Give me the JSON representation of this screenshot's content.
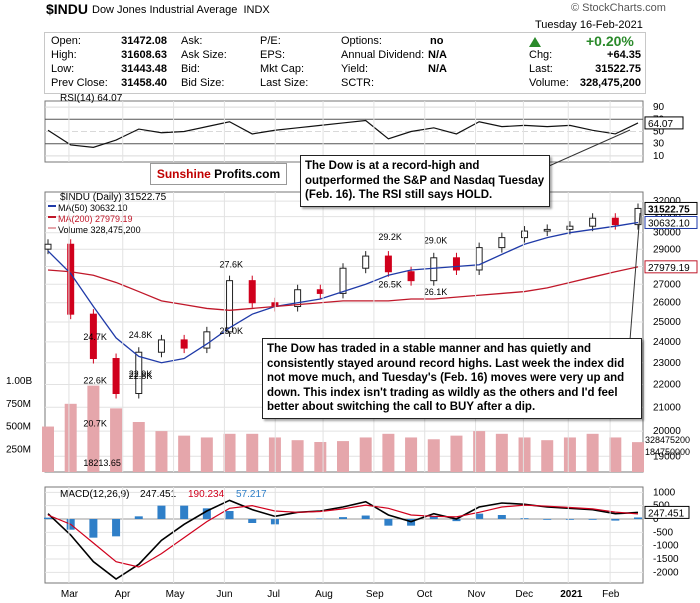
{
  "watermark": "© StockCharts.com",
  "symbol": "$INDU",
  "name": "Dow Jones Industrial Average",
  "exchange": "INDX",
  "date": "Tuesday  16-Feb-2021",
  "quote": {
    "open_label": "Open:",
    "open": "31472.08",
    "high_label": "High:",
    "high": "31608.63",
    "low_label": "Low:",
    "low": "31443.48",
    "prevclose_label": "Prev Close:",
    "prevclose": "31458.40",
    "ask_label": "Ask:",
    "asksize_label": "Ask Size:",
    "bid_label": "Bid:",
    "bidsize_label": "Bid Size:",
    "pe_label": "P/E:",
    "eps_label": "EPS:",
    "mktcap_label": "Mkt Cap:",
    "lastsize_label": "Last Size:",
    "options_label": "Options:",
    "options": "no",
    "dividend_label": "Annual Dividend:",
    "dividend": "N/A",
    "yield_label": "Yield:",
    "yield": "N/A",
    "sctr_label": "SCTR:",
    "pct_change": "+0.20%",
    "chg_label": "Chg:",
    "chg": "+64.35",
    "last_label": "Last:",
    "last": "31522.75",
    "volume_label": "Volume:",
    "volume": "328,475,200"
  },
  "colors": {
    "up": "#2a8a2a",
    "candle_up": "#222222",
    "candle_down": "#d0001c",
    "ma50": "#1f3aa8",
    "ma200": "#c0182a",
    "volume": "#e5a6ab",
    "rsi": "#111111",
    "macd": "#000000",
    "signal": "#d0001c",
    "histogram": "#2f7fc8"
  },
  "logo": {
    "part1": "Sunshine",
    "part2": "Profits.com"
  },
  "annotations": {
    "note1": "The Dow is at a record-high and outperformed the S&P and Nasdaq Tuesday (Feb. 16). The RSI still says HOLD.",
    "note2": "The Dow has traded in a stable manner and has quietly and consistently stayed around record highs. Last week the index did not move much, and Tuesday's (Feb. 16) moves were very up and down. This index isn't trading as wildly as the others and I'd feel better about switching the call to BUY after a dip."
  },
  "chart_data": [
    {
      "type": "line",
      "title": "RSI(14) 64.07",
      "y_ticks": [
        90,
        70,
        50,
        30,
        10
      ],
      "last_label": "64.07",
      "ylim": [
        0,
        100
      ],
      "x": [
        "Feb 14",
        "Feb 28",
        "Mar 14",
        "Mar 28",
        "Apr 11",
        "Apr 25",
        "May 09",
        "May 23",
        "Jun 06",
        "Jun 20",
        "Jul 04",
        "Jul 18",
        "Aug 01",
        "Aug 15",
        "Aug 29",
        "Sep 12",
        "Sep 26",
        "Oct 10",
        "Oct 24",
        "Nov 07",
        "Nov 21",
        "Dec 05",
        "Dec 19",
        "Jan 02",
        "Jan 16",
        "Jan 30",
        "Feb 13"
      ],
      "values": [
        52,
        28,
        24,
        36,
        54,
        48,
        50,
        58,
        66,
        46,
        52,
        56,
        60,
        64,
        68,
        38,
        50,
        56,
        46,
        66,
        58,
        60,
        58,
        60,
        52,
        46,
        64
      ]
    },
    {
      "type": "candlestick",
      "title": "$INDU (Daily) 31522.75",
      "legend": [
        {
          "name": "MA(50) 30632.10",
          "color": "#1f3aa8"
        },
        {
          "name": "MA(200) 27979.19",
          "color": "#c0182a"
        },
        {
          "name": "Volume 328,475,200",
          "color": "#e5a6ab"
        }
      ],
      "x_ticks": [
        "Mar",
        "Apr",
        "May",
        "Jun",
        "Jul",
        "Aug",
        "Sep",
        "Oct",
        "Nov",
        "Dec",
        "2021",
        "Feb"
      ],
      "y_ticks": [
        32000,
        31000,
        30000,
        29000,
        28000,
        27000,
        26000,
        25000,
        24000,
        23000,
        22000,
        21000,
        20000,
        19000
      ],
      "y_scale": "log",
      "ylim": [
        18400,
        32600
      ],
      "price_labels": [
        "31522.75",
        "30632.10",
        "27979.19"
      ],
      "volume_y_ticks": [
        "1.00B",
        "750M",
        "500M",
        "250M"
      ],
      "volume_right_labels": [
        "328475200",
        "184750000"
      ],
      "extrema_labels": [
        {
          "text": "24.7K",
          "x": "Mar 06",
          "y": 24700
        },
        {
          "text": "22.6K",
          "x": "Mar 14",
          "y": 22600
        },
        {
          "text": "20.7K",
          "x": "Mar 20",
          "y": 20700
        },
        {
          "text": "18213.65",
          "x": "Mar 23",
          "y": 18213.65
        },
        {
          "text": "22.9K",
          "x": "Apr 02",
          "y": 22900
        },
        {
          "text": "24.8K",
          "x": "Apr 17",
          "y": 24800
        },
        {
          "text": "22.8K",
          "x": "Apr 30",
          "y": 22800
        },
        {
          "text": "27.6K",
          "x": "Jun 08",
          "y": 27600
        },
        {
          "text": "25.0K",
          "x": "Jun 26",
          "y": 25000
        },
        {
          "text": "29.2K",
          "x": "Sep 02",
          "y": 29200
        },
        {
          "text": "26.5K",
          "x": "Sep 24",
          "y": 26500
        },
        {
          "text": "29.0K",
          "x": "Oct 12",
          "y": 29000
        },
        {
          "text": "26.1K",
          "x": "Oct 30",
          "y": 26100
        }
      ],
      "x": [
        "Feb 14",
        "Feb 28",
        "Mar 14",
        "Mar 28",
        "Apr 11",
        "Apr 25",
        "May 09",
        "May 23",
        "Jun 06",
        "Jun 20",
        "Jul 04",
        "Jul 18",
        "Aug 01",
        "Aug 15",
        "Aug 29",
        "Sep 12",
        "Sep 26",
        "Oct 10",
        "Oct 24",
        "Nov 07",
        "Nov 21",
        "Dec 05",
        "Dec 19",
        "Jan 02",
        "Jan 16",
        "Jan 30",
        "Feb 13"
      ],
      "close": [
        29300,
        25400,
        23200,
        21600,
        23500,
        24100,
        23700,
        24500,
        27200,
        26000,
        25800,
        26700,
        26500,
        27900,
        28600,
        27700,
        27200,
        28500,
        27800,
        29100,
        29700,
        30100,
        30200,
        30400,
        30900,
        30500,
        31522.75
      ],
      "ma50": [
        28900,
        27600,
        25800,
        24200,
        23300,
        23000,
        23200,
        23900,
        24700,
        25400,
        25800,
        26000,
        26200,
        26600,
        27000,
        27500,
        27800,
        27900,
        28000,
        28100,
        28700,
        29300,
        29700,
        30000,
        30200,
        30400,
        30632.1
      ],
      "ma200": [
        27800,
        27700,
        27500,
        27100,
        26600,
        26100,
        25900,
        25700,
        25600,
        25700,
        25800,
        25900,
        26000,
        26100,
        26100,
        26100,
        26200,
        26200,
        26300,
        26400,
        26500,
        26600,
        26800,
        27100,
        27400,
        27700,
        27979.19
      ],
      "volume_millions": [
        500,
        750,
        950,
        700,
        550,
        450,
        400,
        380,
        420,
        420,
        380,
        350,
        330,
        340,
        380,
        420,
        380,
        360,
        400,
        450,
        420,
        380,
        350,
        380,
        420,
        380,
        328.48
      ]
    },
    {
      "type": "line",
      "title": "MACD(12,26,9) 247.451, 190.234, 57.217",
      "legend": [
        {
          "name": "247.451",
          "color": "#000000"
        },
        {
          "name": "190.234",
          "color": "#d0001c"
        },
        {
          "name": "57.217",
          "color": "#2f7fc8"
        }
      ],
      "y_ticks": [
        1000,
        500,
        0,
        -500,
        -1000,
        -1500,
        -2000
      ],
      "ylim": [
        -2400,
        1200
      ],
      "last_label": "247.451",
      "x_ticks": [
        "Mar",
        "Apr",
        "May",
        "Jun",
        "Jul",
        "Aug",
        "Sep",
        "Oct",
        "Nov",
        "Dec",
        "2021",
        "Feb"
      ],
      "x": [
        "Feb 14",
        "Feb 28",
        "Mar 14",
        "Mar 28",
        "Apr 11",
        "Apr 25",
        "May 09",
        "May 23",
        "Jun 06",
        "Jun 20",
        "Jul 04",
        "Jul 18",
        "Aug 01",
        "Aug 15",
        "Aug 29",
        "Sep 12",
        "Sep 26",
        "Oct 10",
        "Oct 24",
        "Nov 07",
        "Nov 21",
        "Dec 05",
        "Dec 19",
        "Jan 02",
        "Jan 16",
        "Jan 30",
        "Feb 13"
      ],
      "macd": [
        200,
        -600,
        -1600,
        -2250,
        -1700,
        -800,
        -200,
        300,
        700,
        350,
        100,
        250,
        300,
        450,
        650,
        150,
        -100,
        200,
        0,
        450,
        600,
        550,
        450,
        400,
        350,
        200,
        247.451
      ],
      "signal": [
        150,
        -200,
        -900,
        -1600,
        -1800,
        -1300,
        -700,
        -100,
        400,
        500,
        300,
        250,
        280,
        380,
        520,
        400,
        150,
        100,
        80,
        250,
        450,
        520,
        480,
        430,
        380,
        260,
        190.234
      ]
    }
  ]
}
